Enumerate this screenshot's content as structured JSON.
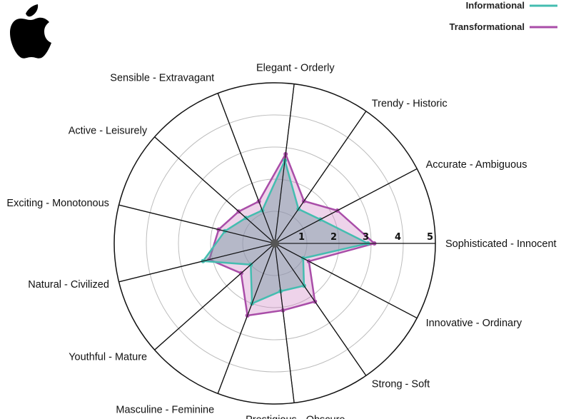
{
  "chart_data": {
    "type": "radar",
    "axes": [
      "Sophisticated - Innocent",
      "Accurate - Ambiguous",
      "Trendy - Historic",
      "Elegant - Orderly",
      "Sensible - Extravagant",
      "Active - Leisurely",
      "Exciting - Monotonous",
      "Natural - Civilized",
      "Youthful - Mature",
      "Masculine - Feminine",
      "Prestigious - Obscure",
      "Strong - Soft",
      "Innovative - Ordinary"
    ],
    "rlim": [
      0,
      5
    ],
    "ticks": [
      "1",
      "2",
      "3",
      "4",
      "5"
    ],
    "grid": true,
    "legend_position": "top-right",
    "series": [
      {
        "name": "Informational",
        "color": "#44BDB0",
        "values": [
          2.9,
          1.6,
          1.3,
          2.6,
          1.1,
          1.2,
          1.6,
          2.3,
          1.0,
          2.0,
          1.5,
          1.6,
          1.0
        ]
      },
      {
        "name": "Transformational",
        "color": "#A94DA8",
        "values": [
          3.1,
          2.2,
          1.6,
          2.8,
          1.4,
          1.5,
          1.8,
          2.1,
          1.4,
          2.4,
          2.1,
          2.2,
          1.2
        ]
      }
    ]
  },
  "logo": {
    "name": "apple-icon"
  }
}
